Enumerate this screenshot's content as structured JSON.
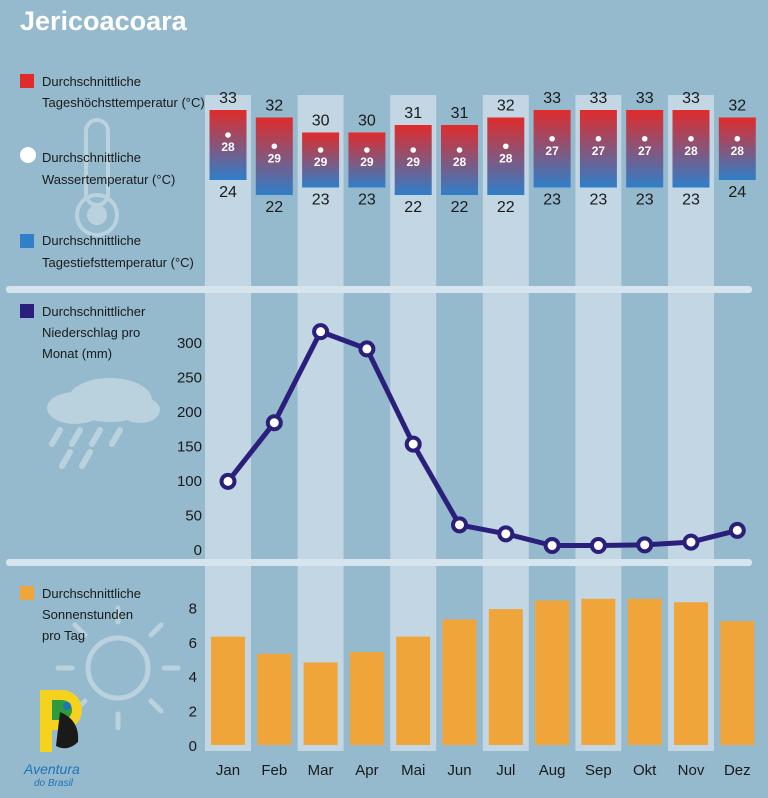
{
  "page": {
    "title": "Jericoacoara"
  },
  "legend": {
    "high_temp": [
      "Durchschnittliche",
      "Tageshöchsttemperatur (°C)"
    ],
    "water_temp": [
      "Durchschnittliche",
      "Wassertemperatur (°C)"
    ],
    "low_temp": [
      "Durchschnittliche",
      "Tagestiefsttemperatur (°C)"
    ],
    "precipitation": [
      "Durchschnittlicher",
      "Niederschlag pro",
      "Monat (mm)"
    ],
    "sunshine": [
      "Durchschnittliche",
      "Sonnenstunden",
      "pro Tag"
    ]
  },
  "colors": {
    "background": "#95b9cd",
    "column_band": "#c3d6e3",
    "high_temp": "#e02b2b",
    "low_temp": "#2f7fc9",
    "precip_line": "#2a1f7a",
    "sunshine_bar": "#f0a53a"
  },
  "logo": {
    "line1": "Aventura",
    "line2": "do Brasil"
  },
  "chart_data": [
    {
      "type": "bar",
      "title": "",
      "categories": [
        "Jan",
        "Feb",
        "Mar",
        "Apr",
        "Mai",
        "Jun",
        "Jul",
        "Aug",
        "Sep",
        "Okt",
        "Nov",
        "Dez"
      ],
      "series": [
        {
          "name": "Durchschnittliche Tageshöchsttemperatur (°C)",
          "values": [
            33,
            32,
            30,
            30,
            31,
            31,
            32,
            33,
            33,
            33,
            33,
            32
          ]
        },
        {
          "name": "Durchschnittliche Wassertemperatur (°C)",
          "values": [
            28,
            29,
            29,
            29,
            29,
            28,
            28,
            27,
            27,
            27,
            28,
            28
          ]
        },
        {
          "name": "Durchschnittliche Tagestiefsttemperatur (°C)",
          "values": [
            24,
            22,
            23,
            23,
            22,
            22,
            22,
            23,
            23,
            23,
            23,
            24
          ]
        }
      ]
    },
    {
      "type": "line",
      "title": "",
      "categories": [
        "Jan",
        "Feb",
        "Mar",
        "Apr",
        "Mai",
        "Jun",
        "Jul",
        "Aug",
        "Sep",
        "Okt",
        "Nov",
        "Dez"
      ],
      "series": [
        {
          "name": "Durchschnittlicher Niederschlag pro Monat (mm)",
          "values": [
            98,
            183,
            315,
            290,
            152,
            35,
            22,
            5,
            5,
            6,
            10,
            27
          ]
        }
      ],
      "yticks": [
        0,
        50,
        100,
        150,
        200,
        250,
        300
      ],
      "ylim": [
        0,
        320
      ]
    },
    {
      "type": "bar",
      "title": "",
      "categories": [
        "Jan",
        "Feb",
        "Mar",
        "Apr",
        "Mai",
        "Jun",
        "Jul",
        "Aug",
        "Sep",
        "Okt",
        "Nov",
        "Dez"
      ],
      "series": [
        {
          "name": "Durchschnittliche Sonnenstunden pro Tag",
          "values": [
            6.3,
            5.3,
            4.8,
            5.4,
            6.3,
            7.3,
            7.9,
            8.4,
            8.5,
            8.5,
            8.3,
            7.2
          ]
        }
      ],
      "yticks": [
        0,
        2,
        4,
        6,
        8
      ],
      "ylim": [
        0,
        9
      ]
    }
  ]
}
